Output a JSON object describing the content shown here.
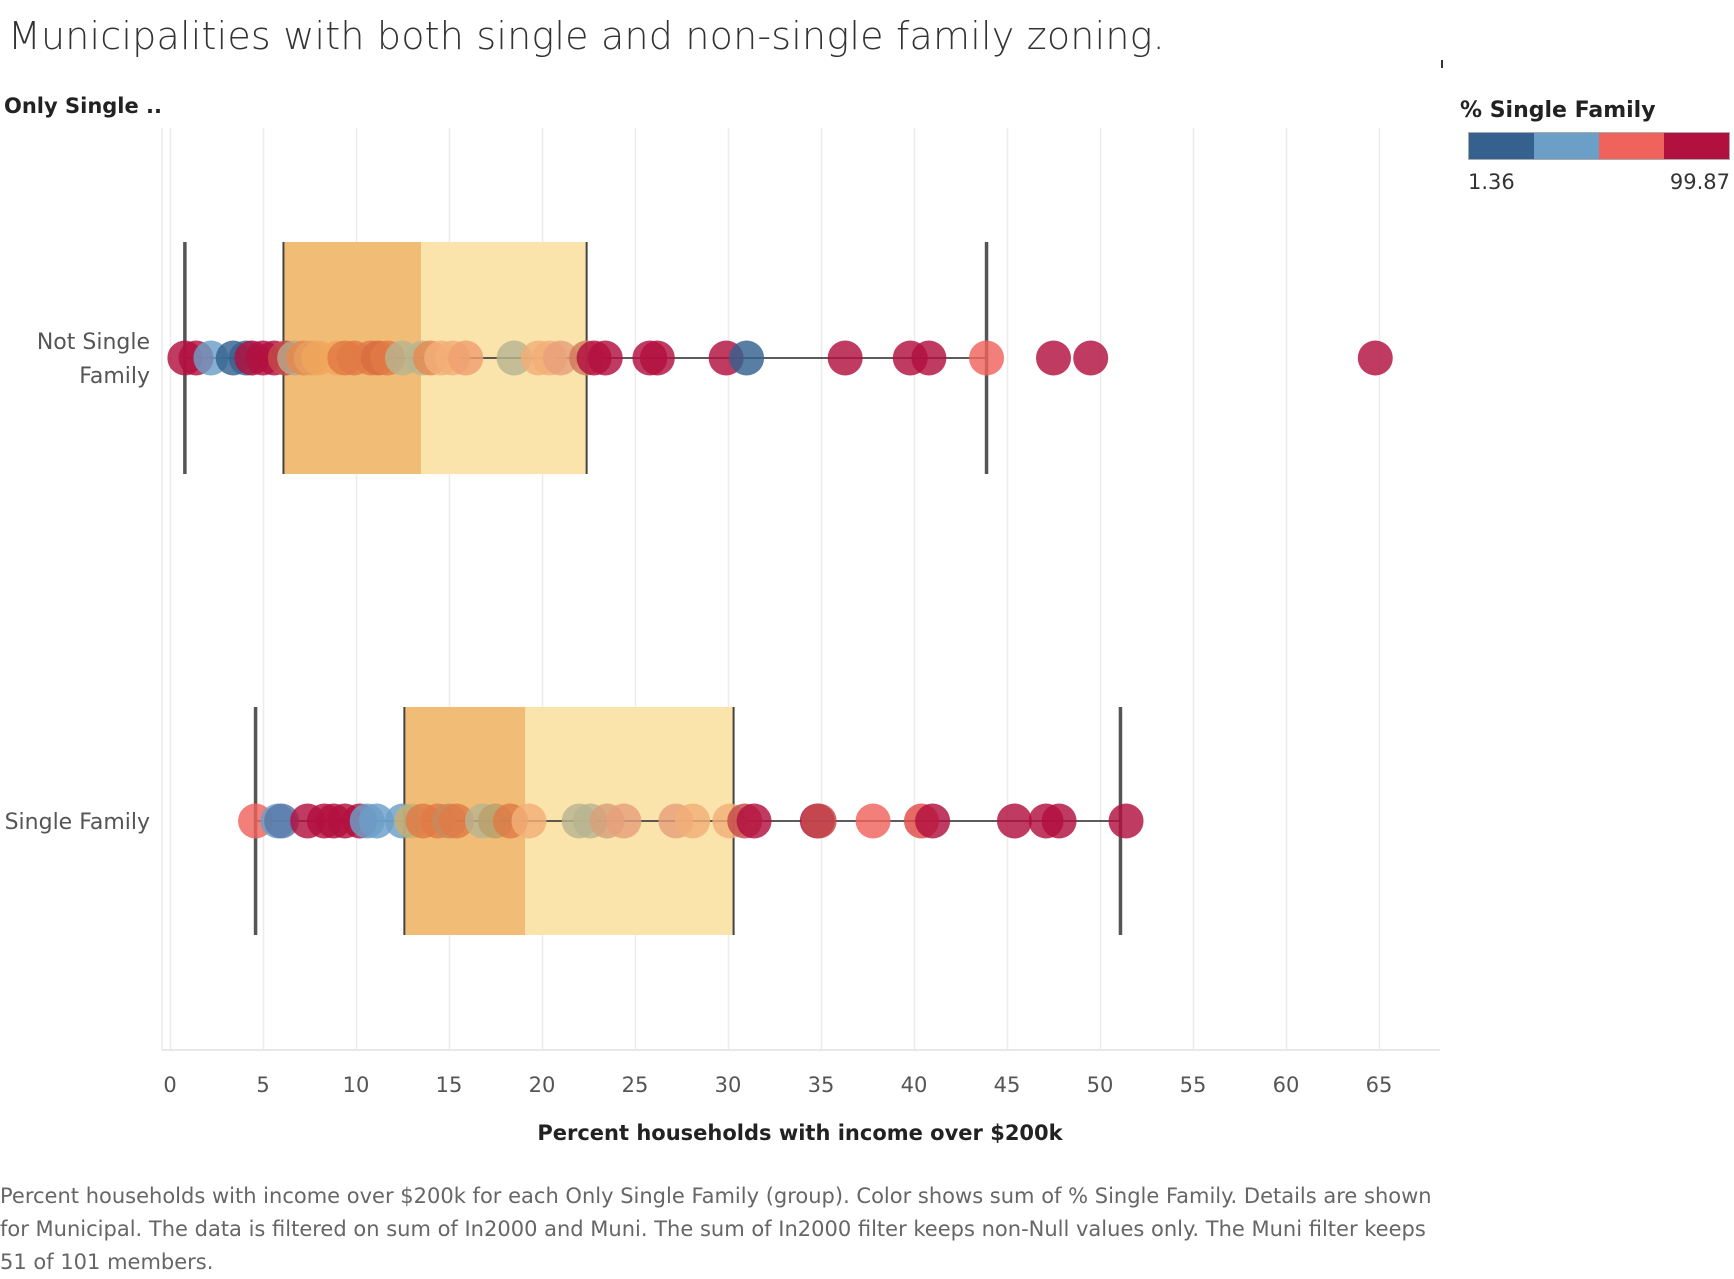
{
  "title": "Municipalities with both single and non-single family zoning.",
  "row_header": "Only Single ..",
  "legend": {
    "title": "% Single Family",
    "min": "1.36",
    "max": "99.87",
    "colors": [
      "#35618f",
      "#6b9fc8",
      "#f0635d",
      "#b2103f"
    ]
  },
  "caption": "Percent households with income over $200k for each Only Single Family (group).  Color shows sum of % Single Family.  Details are shown for Municipal. The data is filtered on sum of In2000 and Muni. The sum of In2000 filter keeps non-Null values only. The Muni filter keeps 51 of 101 members.",
  "chart_data": {
    "type": "scatter",
    "xlabel": "Percent households with income over $200k",
    "xlim": [
      0,
      68
    ],
    "xticks": [
      0,
      5,
      10,
      15,
      20,
      25,
      30,
      35,
      40,
      45,
      50,
      55,
      60,
      65
    ],
    "grid": true,
    "categories": [
      "Not Single Family",
      "Single Family"
    ],
    "category_labels": [
      [
        "Not Single",
        "Family"
      ],
      [
        "Single Family"
      ]
    ],
    "boxes": [
      {
        "category": "Not Single Family",
        "whisker_low": 0.8,
        "q1": 6.1,
        "median": 13.5,
        "q3": 22.4,
        "whisker_high": 43.9
      },
      {
        "category": "Single Family",
        "whisker_low": 4.6,
        "q1": 12.6,
        "median": 19.1,
        "q3": 30.3,
        "whisker_high": 51.1
      }
    ],
    "series": [
      {
        "category": "Not Single Family",
        "points": [
          {
            "x": 0.8,
            "c": "#b2103f"
          },
          {
            "x": 1.4,
            "c": "#b2103f"
          },
          {
            "x": 2.2,
            "c": "#6b9fc8"
          },
          {
            "x": 3.4,
            "c": "#35618f"
          },
          {
            "x": 4.1,
            "c": "#35618f"
          },
          {
            "x": 4.4,
            "c": "#b2103f"
          },
          {
            "x": 5.0,
            "c": "#b2103f"
          },
          {
            "x": 5.6,
            "c": "#b2103f"
          },
          {
            "x": 6.2,
            "c": "#c44a4a"
          },
          {
            "x": 6.7,
            "c": "#b8a98a"
          },
          {
            "x": 7.2,
            "c": "#e68a4a"
          },
          {
            "x": 7.6,
            "c": "#e89e60"
          },
          {
            "x": 8.0,
            "c": "#f0a65c"
          },
          {
            "x": 9.0,
            "c": "#f0a65c"
          },
          {
            "x": 9.4,
            "c": "#e07a45"
          },
          {
            "x": 9.9,
            "c": "#e07a45"
          },
          {
            "x": 10.8,
            "c": "#e07a45"
          },
          {
            "x": 11.2,
            "c": "#d86d40"
          },
          {
            "x": 11.7,
            "c": "#e07a45"
          },
          {
            "x": 12.5,
            "c": "#b8b490"
          },
          {
            "x": 13.6,
            "c": "#b8b490"
          },
          {
            "x": 14.0,
            "c": "#e88a50"
          },
          {
            "x": 14.6,
            "c": "#f3ae78"
          },
          {
            "x": 15.2,
            "c": "#f3ae78"
          },
          {
            "x": 15.9,
            "c": "#f0a070"
          },
          {
            "x": 18.5,
            "c": "#b8b490"
          },
          {
            "x": 19.8,
            "c": "#f3ae78"
          },
          {
            "x": 20.4,
            "c": "#f3ae78"
          },
          {
            "x": 21.0,
            "c": "#e8a07a"
          },
          {
            "x": 22.4,
            "c": "#d07a5a"
          },
          {
            "x": 22.8,
            "c": "#b2103f"
          },
          {
            "x": 23.4,
            "c": "#b2103f"
          },
          {
            "x": 25.8,
            "c": "#b2103f"
          },
          {
            "x": 26.2,
            "c": "#b2103f"
          },
          {
            "x": 29.9,
            "c": "#b2103f"
          },
          {
            "x": 31.0,
            "c": "#35618f"
          },
          {
            "x": 36.3,
            "c": "#b2103f"
          },
          {
            "x": 39.8,
            "c": "#b2103f"
          },
          {
            "x": 40.8,
            "c": "#b2103f"
          },
          {
            "x": 43.9,
            "c": "#f0635d"
          },
          {
            "x": 47.5,
            "c": "#b2103f"
          },
          {
            "x": 49.5,
            "c": "#b2103f"
          },
          {
            "x": 64.8,
            "c": "#b2103f"
          }
        ]
      },
      {
        "category": "Single Family",
        "points": [
          {
            "x": 4.6,
            "c": "#f0635d"
          },
          {
            "x": 5.8,
            "c": "#6b9fc8"
          },
          {
            "x": 6.0,
            "c": "#5878a8"
          },
          {
            "x": 7.4,
            "c": "#b2103f"
          },
          {
            "x": 8.3,
            "c": "#b2103f"
          },
          {
            "x": 8.8,
            "c": "#b2103f"
          },
          {
            "x": 9.4,
            "c": "#b2103f"
          },
          {
            "x": 10.2,
            "c": "#b2103f"
          },
          {
            "x": 10.6,
            "c": "#6b9fc8"
          },
          {
            "x": 11.1,
            "c": "#6b9fc8"
          },
          {
            "x": 12.5,
            "c": "#6b9fc8"
          },
          {
            "x": 13.0,
            "c": "#c8b070"
          },
          {
            "x": 13.6,
            "c": "#e07a45"
          },
          {
            "x": 14.4,
            "c": "#e07a45"
          },
          {
            "x": 15.0,
            "c": "#c88a5a"
          },
          {
            "x": 15.4,
            "c": "#e07a45"
          },
          {
            "x": 16.8,
            "c": "#b8b490"
          },
          {
            "x": 17.5,
            "c": "#b8a06a"
          },
          {
            "x": 18.3,
            "c": "#e07a45"
          },
          {
            "x": 19.3,
            "c": "#f3ae78"
          },
          {
            "x": 22.0,
            "c": "#b8b490"
          },
          {
            "x": 22.6,
            "c": "#b8b490"
          },
          {
            "x": 23.5,
            "c": "#d8a07a"
          },
          {
            "x": 24.4,
            "c": "#e8a07a"
          },
          {
            "x": 27.2,
            "c": "#e8a07a"
          },
          {
            "x": 28.1,
            "c": "#f3ae78"
          },
          {
            "x": 30.1,
            "c": "#f3ae78"
          },
          {
            "x": 30.9,
            "c": "#c44a4a"
          },
          {
            "x": 31.4,
            "c": "#b2103f"
          },
          {
            "x": 34.8,
            "c": "#b2103f"
          },
          {
            "x": 34.9,
            "c": "#c44a4a"
          },
          {
            "x": 37.8,
            "c": "#f0635d"
          },
          {
            "x": 40.4,
            "c": "#e04a44"
          },
          {
            "x": 41.0,
            "c": "#b2103f"
          },
          {
            "x": 45.4,
            "c": "#b2103f"
          },
          {
            "x": 47.1,
            "c": "#b2103f"
          },
          {
            "x": 47.8,
            "c": "#b2103f"
          },
          {
            "x": 51.4,
            "c": "#b2103f"
          }
        ]
      }
    ]
  }
}
